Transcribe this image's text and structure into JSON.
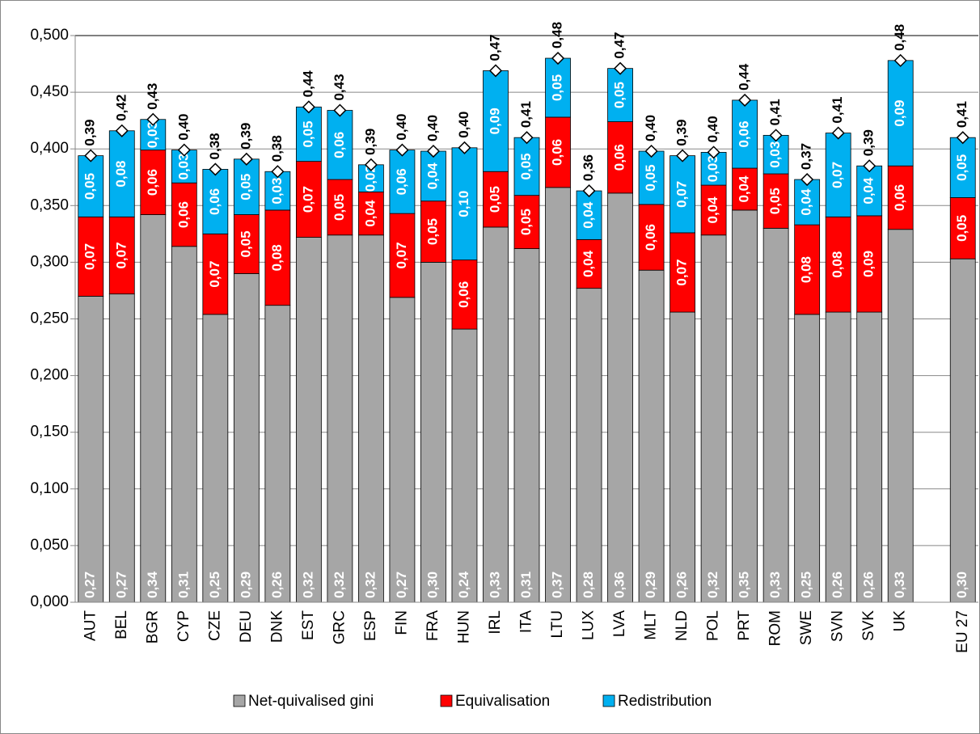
{
  "chart_data": {
    "type": "stacked-bar",
    "categories": [
      "AUT",
      "BEL",
      "BGR",
      "CYP",
      "CZE",
      "DEU",
      "DNK",
      "EST",
      "GRC",
      "ESP",
      "FIN",
      "FRA",
      "HUN",
      "IRL",
      "ITA",
      "LTU",
      "LUX",
      "LVA",
      "MLT",
      "NLD",
      "POL",
      "PRT",
      "ROM",
      "SWE",
      "SVN",
      "SVK",
      "UK",
      null,
      "EU 27"
    ],
    "series": [
      {
        "name": "Net-quivalised gini",
        "color": "#a6a6a6",
        "values": [
          0.27,
          0.272,
          0.342,
          0.314,
          0.254,
          0.29,
          0.262,
          0.322,
          0.324,
          0.324,
          0.269,
          0.3,
          0.241,
          0.331,
          0.312,
          0.366,
          0.277,
          0.361,
          0.293,
          0.256,
          0.324,
          0.346,
          0.33,
          0.254,
          0.256,
          0.256,
          0.329,
          null,
          0.303
        ],
        "value_labels": [
          "0,27",
          "0,27",
          "0,34",
          "0,31",
          "0,25",
          "0,29",
          "0,26",
          "0,32",
          "0,32",
          "0,32",
          "0,27",
          "0,30",
          "0,24",
          "0,33",
          "0,31",
          "0,37",
          "0,28",
          "0,36",
          "0,29",
          "0,26",
          "0,32",
          "0,35",
          "0,33",
          "0,25",
          "0,26",
          "0,26",
          "0,33",
          null,
          "0,30"
        ]
      },
      {
        "name": "Equivalisation",
        "color": "#ff0000",
        "values": [
          0.07,
          0.068,
          0.057,
          0.056,
          0.071,
          0.052,
          0.084,
          0.067,
          0.049,
          0.038,
          0.074,
          0.054,
          0.061,
          0.049,
          0.047,
          0.062,
          0.043,
          0.063,
          0.058,
          0.07,
          0.044,
          0.037,
          0.048,
          0.079,
          0.084,
          0.085,
          0.056,
          null,
          0.054
        ],
        "value_labels": [
          "0,07",
          "0,07",
          "0,06",
          "0,06",
          "0,07",
          "0,05",
          "0,08",
          "0,07",
          "0,05",
          "0,04",
          "0,07",
          "0,05",
          "0,06",
          "0,05",
          "0,05",
          "0,06",
          "0,04",
          "0,06",
          "0,06",
          "0,07",
          "0,04",
          "0,04",
          "0,05",
          "0,08",
          "0,08",
          "0,09",
          "0,06",
          null,
          "0,05"
        ]
      },
      {
        "name": "Redistribution",
        "color": "#00b0f0",
        "values": [
          0.054,
          0.076,
          0.027,
          0.029,
          0.057,
          0.049,
          0.034,
          0.048,
          0.061,
          0.024,
          0.056,
          0.044,
          0.099,
          0.089,
          0.051,
          0.052,
          0.043,
          0.047,
          0.047,
          0.068,
          0.029,
          0.06,
          0.034,
          0.04,
          0.074,
          0.044,
          0.093,
          null,
          0.053
        ],
        "value_labels": [
          "0,05",
          "0,08",
          "0,03",
          "0,03",
          "0,06",
          "0,05",
          "0,03",
          "0,05",
          "0,06",
          "0,02",
          "0,06",
          "0,04",
          "0,10",
          "0,09",
          "0,05",
          "0,05",
          "0,04",
          "0,05",
          "0,05",
          "0,07",
          "0,03",
          "0,06",
          "0,03",
          "0,04",
          "0,07",
          "0,04",
          "0,09",
          null,
          "0,05"
        ]
      }
    ],
    "totals": {
      "values": [
        0.394,
        0.416,
        0.426,
        0.399,
        0.382,
        0.391,
        0.38,
        0.437,
        0.434,
        0.386,
        0.399,
        0.398,
        0.401,
        0.469,
        0.41,
        0.48,
        0.363,
        0.471,
        0.398,
        0.394,
        0.397,
        0.443,
        0.412,
        0.373,
        0.414,
        0.385,
        0.478,
        null,
        0.41
      ],
      "value_labels": [
        "0,39",
        "0,42",
        "0,43",
        "0,40",
        "0,38",
        "0,39",
        "0,38",
        "0,44",
        "0,43",
        "0,39",
        "0,40",
        "0,40",
        "0,40",
        "0,47",
        "0,41",
        "0,48",
        "0,36",
        "0,47",
        "0,40",
        "0,39",
        "0,40",
        "0,44",
        "0,41",
        "0,37",
        "0,41",
        "0,39",
        "0,48",
        null,
        "0,41"
      ]
    },
    "ylim": [
      0,
      0.5
    ],
    "yticks": [
      {
        "value": 0,
        "label": "0,000"
      },
      {
        "value": 0.05,
        "label": "0,050"
      },
      {
        "value": 0.1,
        "label": "0,100"
      },
      {
        "value": 0.15,
        "label": "0,150"
      },
      {
        "value": 0.2,
        "label": "0,200"
      },
      {
        "value": 0.25,
        "label": "0,250"
      },
      {
        "value": 0.3,
        "label": "0,300"
      },
      {
        "value": 0.35,
        "label": "0,350"
      },
      {
        "value": 0.4,
        "label": "0,400"
      },
      {
        "value": 0.45,
        "label": "0,450"
      },
      {
        "value": 0.5,
        "label": "0,500"
      }
    ],
    "grid": true,
    "legend": "bottom"
  }
}
